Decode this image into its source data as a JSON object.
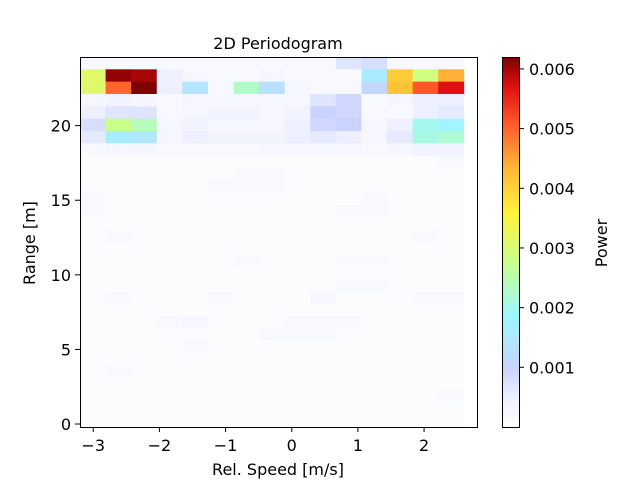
{
  "chart_data": {
    "type": "heatmap",
    "title": "2D Periodogram",
    "xlabel": "Rel. Speed [m/s]",
    "ylabel": "Range [m]",
    "xlim": [
      -3.2,
      2.8
    ],
    "ylim": [
      -0.2,
      24.6
    ],
    "xticks": [
      {
        "value": -3,
        "label": "−3"
      },
      {
        "value": -2,
        "label": "−2"
      },
      {
        "value": -1,
        "label": "−1"
      },
      {
        "value": 0,
        "label": "0"
      },
      {
        "value": 1,
        "label": "1"
      },
      {
        "value": 2,
        "label": "2"
      }
    ],
    "yticks": [
      {
        "value": 0,
        "label": "0"
      },
      {
        "value": 5,
        "label": "5"
      },
      {
        "value": 10,
        "label": "10"
      },
      {
        "value": 15,
        "label": "15"
      },
      {
        "value": 20,
        "label": "20"
      }
    ],
    "colorbar": {
      "label": "Power",
      "colormap": "jet",
      "vmin": 0.0,
      "vmax": 0.0062,
      "ticks": [
        {
          "value": 0.001,
          "label": "0.001"
        },
        {
          "value": 0.002,
          "label": "0.002"
        },
        {
          "value": 0.003,
          "label": "0.003"
        },
        {
          "value": 0.004,
          "label": "0.004"
        },
        {
          "value": 0.005,
          "label": "0.005"
        },
        {
          "value": 0.006,
          "label": "0.006"
        }
      ]
    },
    "grid": false,
    "x_bin_start": -3.2,
    "x_bin_width": 0.3867,
    "y_bin_start": -0.2,
    "y_bin_width": 0.8267,
    "values_top_row_first": [
      [
        0.0002,
        0.0002,
        0.0002,
        0.0002,
        0.0002,
        0.0002,
        0.0002,
        0.0002,
        0.0002,
        0.0002,
        0.0007,
        0.0008,
        0.0002,
        0.0002,
        0.0002
      ],
      [
        0.0031,
        0.0061,
        0.006,
        0.0005,
        0.0003,
        0.0002,
        0.0002,
        0.0003,
        0.0002,
        0.0002,
        0.0002,
        0.0016,
        0.0041,
        0.0029,
        0.0044
      ],
      [
        0.0031,
        0.005,
        0.0062,
        0.0005,
        0.0014,
        0.0002,
        0.0023,
        0.0013,
        0.0003,
        0.0002,
        0.0002,
        0.0011,
        0.0042,
        0.0051,
        0.0057
      ],
      [
        0.0003,
        0.0004,
        0.0003,
        0.0002,
        0.0003,
        0.0003,
        0.0003,
        0.0003,
        0.0003,
        0.0007,
        0.0009,
        0.0002,
        0.0003,
        0.0005,
        0.0005
      ],
      [
        0.0005,
        0.0007,
        0.0007,
        0.0002,
        0.0003,
        0.0004,
        0.0004,
        0.0003,
        0.0004,
        0.001,
        0.0009,
        0.0002,
        0.0002,
        0.0005,
        0.0006
      ],
      [
        0.0008,
        0.0028,
        0.0024,
        0.0003,
        0.0004,
        0.0003,
        0.0003,
        0.0003,
        0.0005,
        0.0009,
        0.001,
        0.0003,
        0.0005,
        0.002,
        0.0018
      ],
      [
        0.0006,
        0.0016,
        0.0015,
        0.0003,
        0.0005,
        0.0004,
        0.0004,
        0.0004,
        0.0005,
        0.0006,
        0.0005,
        0.0003,
        0.0006,
        0.0021,
        0.0022
      ],
      [
        0.0002,
        0.0003,
        0.0003,
        0.0002,
        0.0002,
        0.0002,
        0.0002,
        0.0003,
        0.0003,
        0.0003,
        0.0003,
        0.0002,
        0.0003,
        0.0004,
        0.0004
      ],
      [
        0.0001,
        0.0001,
        0.0001,
        0.0001,
        0.0001,
        0.0001,
        0.0001,
        0.0001,
        0.0001,
        0.0001,
        0.0001,
        0.0001,
        0.0001,
        0.0001,
        0.0002
      ],
      [
        0.0001,
        0.0001,
        0.0001,
        0.0001,
        0.0001,
        0.0001,
        0.0002,
        0.0002,
        0.0001,
        0.0001,
        0.0001,
        0.0001,
        0.0001,
        0.0001,
        0.0001
      ],
      [
        0.0001,
        0.0001,
        0.0001,
        0.0001,
        0.0001,
        0.0002,
        0.0002,
        0.0002,
        0.0001,
        0.0001,
        0.0001,
        0.0001,
        0.0001,
        0.0001,
        0.0001
      ],
      [
        0.0002,
        0.0001,
        0.0001,
        0.0001,
        0.0001,
        0.0001,
        0.0001,
        0.0001,
        0.0001,
        0.0001,
        0.0001,
        0.0002,
        0.0001,
        0.0001,
        0.0001
      ],
      [
        0.0002,
        0.0001,
        0.0001,
        0.0001,
        0.0001,
        0.0001,
        0.0001,
        0.0001,
        0.0001,
        0.0001,
        0.0002,
        0.0002,
        0.0001,
        0.0001,
        0.0001
      ],
      [
        0.0001,
        0.0001,
        0.0001,
        0.0001,
        0.0001,
        0.0001,
        0.0001,
        0.0001,
        0.0001,
        0.0001,
        0.0001,
        0.0001,
        0.0001,
        0.0001,
        0.0001
      ],
      [
        0.0001,
        0.0002,
        0.0001,
        0.0001,
        0.0001,
        0.0001,
        0.0001,
        0.0001,
        0.0001,
        0.0001,
        0.0001,
        0.0001,
        0.0001,
        0.0002,
        0.0001
      ],
      [
        0.0001,
        0.0001,
        0.0001,
        0.0001,
        0.0001,
        0.0001,
        0.0001,
        0.0001,
        0.0001,
        0.0001,
        0.0001,
        0.0001,
        0.0001,
        0.0001,
        0.0001
      ],
      [
        0.0001,
        0.0001,
        0.0001,
        0.0001,
        0.0001,
        0.0001,
        0.0002,
        0.0001,
        0.0001,
        0.0001,
        0.0002,
        0.0002,
        0.0001,
        0.0001,
        0.0001
      ],
      [
        0.0001,
        0.0001,
        0.0001,
        0.0001,
        0.0001,
        0.0001,
        0.0001,
        0.0001,
        0.0001,
        0.0001,
        0.0001,
        0.0001,
        0.0001,
        0.0001,
        0.0001
      ],
      [
        0.0001,
        0.0001,
        0.0001,
        0.0001,
        0.0001,
        0.0001,
        0.0001,
        0.0001,
        0.0001,
        0.0001,
        0.0002,
        0.0002,
        0.0001,
        0.0001,
        0.0001
      ],
      [
        0.0001,
        0.0002,
        0.0001,
        0.0001,
        0.0001,
        0.0002,
        0.0001,
        0.0001,
        0.0001,
        0.0003,
        0.0001,
        0.0001,
        0.0001,
        0.0002,
        0.0002
      ],
      [
        0.0001,
        0.0001,
        0.0001,
        0.0001,
        0.0001,
        0.0001,
        0.0001,
        0.0001,
        0.0001,
        0.0001,
        0.0001,
        0.0001,
        0.0001,
        0.0001,
        0.0001
      ],
      [
        0.0001,
        0.0001,
        0.0001,
        0.0002,
        0.0003,
        0.0001,
        0.0001,
        0.0001,
        0.0002,
        0.0002,
        0.0002,
        0.0001,
        0.0001,
        0.0001,
        0.0001
      ],
      [
        0.0001,
        0.0001,
        0.0001,
        0.0001,
        0.0001,
        0.0001,
        0.0001,
        0.0002,
        0.0002,
        0.0002,
        0.0001,
        0.0001,
        0.0001,
        0.0001,
        0.0001
      ],
      [
        0.0001,
        0.0001,
        0.0001,
        0.0001,
        0.0002,
        0.0001,
        0.0001,
        0.0001,
        0.0001,
        0.0001,
        0.0001,
        0.0001,
        0.0001,
        0.0001,
        0.0001
      ],
      [
        0.0001,
        0.0001,
        0.0001,
        0.0001,
        0.0001,
        0.0001,
        0.0001,
        0.0001,
        0.0001,
        0.0001,
        0.0001,
        0.0001,
        0.0001,
        0.0001,
        0.0001
      ],
      [
        0.0001,
        0.0002,
        0.0001,
        0.0001,
        0.0001,
        0.0001,
        0.0001,
        0.0001,
        0.0001,
        0.0001,
        0.0001,
        0.0001,
        0.0001,
        0.0001,
        0.0001
      ],
      [
        0.0001,
        0.0001,
        0.0001,
        0.0001,
        0.0001,
        0.0001,
        0.0001,
        0.0001,
        0.0001,
        0.0001,
        0.0001,
        0.0001,
        0.0001,
        0.0001,
        0.0001
      ],
      [
        0.0001,
        0.0001,
        0.0001,
        0.0001,
        0.0001,
        0.0001,
        0.0001,
        0.0001,
        0.0001,
        0.0001,
        0.0001,
        0.0001,
        0.0001,
        0.0001,
        0.0002
      ],
      [
        0.0001,
        0.0001,
        0.0001,
        0.0001,
        0.0001,
        0.0001,
        0.0001,
        0.0001,
        0.0001,
        0.0001,
        0.0001,
        0.0001,
        0.0001,
        0.0001,
        0.0001
      ],
      [
        0.0001,
        0.0001,
        0.0001,
        0.0001,
        0.0001,
        0.0001,
        0.0001,
        0.0001,
        0.0001,
        0.0001,
        0.0001,
        0.0001,
        0.0001,
        0.0001,
        0.0001
      ]
    ]
  }
}
